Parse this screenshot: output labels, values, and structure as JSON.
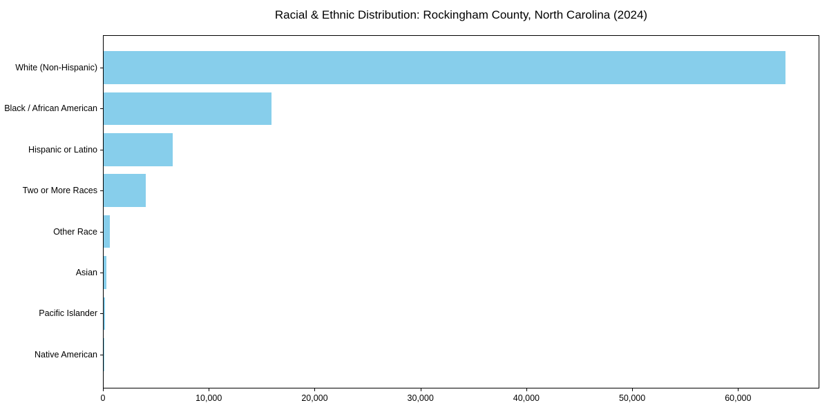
{
  "chart_data": {
    "type": "bar",
    "orientation": "horizontal",
    "title": "Racial & Ethnic Distribution: Rockingham County, North Carolina (2024)",
    "xlabel": "",
    "ylabel": "",
    "categories": [
      "White (Non-Hispanic)",
      "Black / African American",
      "Hispanic or Latino",
      "Two or More Races",
      "Other Race",
      "Asian",
      "Pacific Islander",
      "Native American"
    ],
    "values": [
      64400,
      15850,
      6550,
      3950,
      620,
      290,
      140,
      40
    ],
    "xlim": [
      0,
      67680
    ],
    "x_ticks": [
      0,
      10000,
      20000,
      30000,
      40000,
      50000,
      60000
    ],
    "x_tick_labels": [
      "0",
      "10,000",
      "20,000",
      "30,000",
      "40,000",
      "50,000",
      "60,000"
    ],
    "bar_color": "#87ceeb",
    "grid": false,
    "legend_position": "none"
  }
}
